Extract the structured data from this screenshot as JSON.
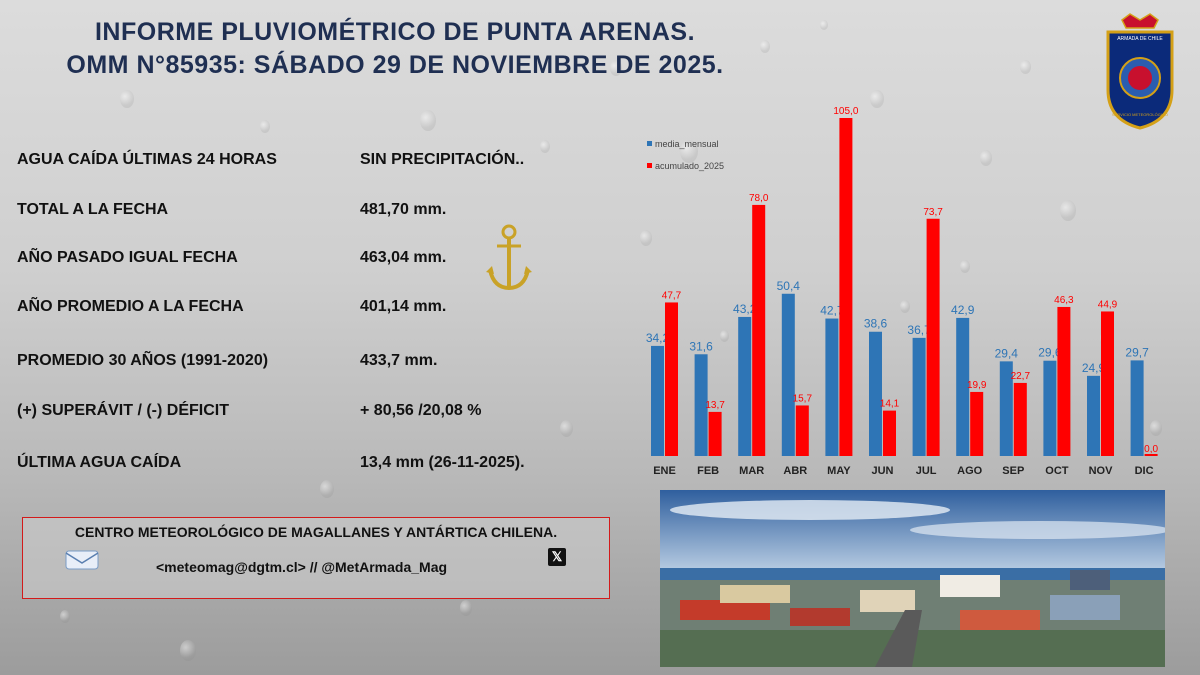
{
  "header": {
    "line1": "INFORME PLUVIOMÉTRICO DE PUNTA ARENAS.",
    "line2": "OMM N°85935: SÁBADO 29 DE NOVIEMBRE DE 2025."
  },
  "crest": {
    "top_text": "ARMADA DE CHILE",
    "bottom_text": "SERVICIO METEOROLÓGICO"
  },
  "stats": [
    {
      "label": "AGUA CAÍDA ÚLTIMAS 24 HORAS",
      "value": "SIN PRECIPITACIÓN.."
    },
    {
      "label": "TOTAL A LA FECHA",
      "value": "481,70 mm."
    },
    {
      "label": "AÑO PASADO IGUAL FECHA",
      "value": "463,04 mm."
    },
    {
      "label": "AÑO PROMEDIO A LA FECHA",
      "value": "401,14 mm."
    },
    {
      "label": "PROMEDIO 30 AÑOS (1991-2020)",
      "value": "433,7 mm."
    },
    {
      "label": "(+) SUPERÁVIT / (-) DÉFICIT",
      "value": "+ 80,56 /20,08 %"
    },
    {
      "label": "ÚLTIMA AGUA CAÍDA",
      "value": "13,4 mm (26-11-2025)."
    }
  ],
  "footer": {
    "center_name": "CENTRO METEOROLÓGICO DE MAGALLANES Y ANTÁRTICA CHILENA.",
    "contact": "<meteomag@dgtm.cl> // @MetArmada_Mag",
    "x_glyph": "𝕏"
  },
  "chart_data": {
    "type": "bar",
    "categories": [
      "ENE",
      "FEB",
      "MAR",
      "ABR",
      "MAY",
      "JUN",
      "JUL",
      "AGO",
      "SEP",
      "OCT",
      "NOV",
      "DIC"
    ],
    "series": [
      {
        "name": "media_mensual",
        "color": "#2e75b6",
        "values": [
          34.2,
          31.6,
          43.2,
          50.4,
          42.7,
          38.6,
          36.7,
          42.9,
          29.4,
          29.6,
          24.9,
          29.7
        ],
        "labels": [
          "34,2",
          "31,6",
          "43,2",
          "50,4",
          "42,7",
          "38,6",
          "36,7",
          "42,9",
          "29,4",
          "29,6",
          "24,9",
          "29,7"
        ]
      },
      {
        "name": "acumulado_2025",
        "color": "#ff0000",
        "values": [
          47.7,
          13.7,
          78.0,
          15.7,
          105.0,
          14.1,
          73.7,
          19.9,
          22.7,
          46.3,
          44.9,
          0.0
        ],
        "labels": [
          "47,7",
          "13,7",
          "78,0",
          "15,7",
          "105,0",
          "14,1",
          "73,7",
          "19,9",
          "22,7",
          "46,3",
          "44,9",
          "0,0"
        ]
      }
    ],
    "ylim": [
      0,
      105
    ],
    "legend": "top-left",
    "title": "",
    "xlabel": "",
    "ylabel": ""
  }
}
